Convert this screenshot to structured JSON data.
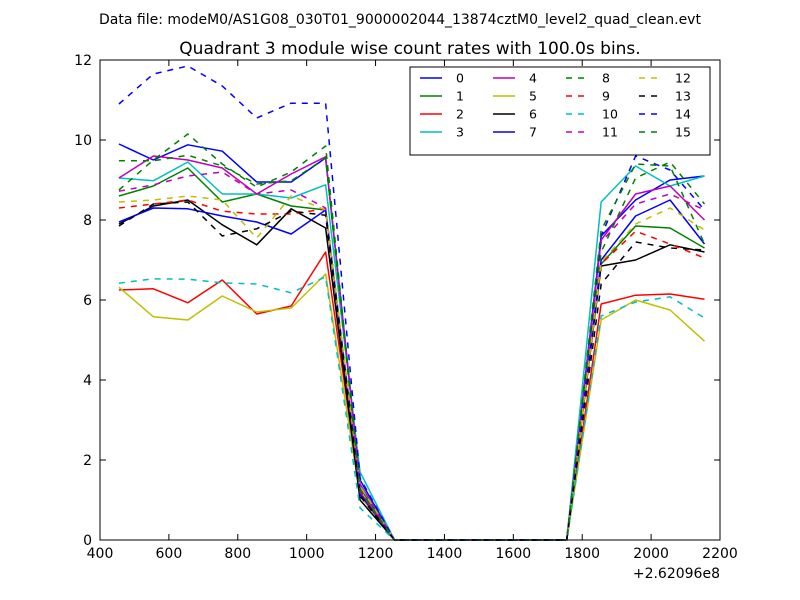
{
  "figure": {
    "suptitle": "Data file: modeM0/AS1G08_030T01_9000002044_13874cztM0_level2_quad_clean.evt"
  },
  "chart_data": {
    "type": "line",
    "title": "Quadrant 3 module wise count rates with 100.0s bins.",
    "xlabel": "",
    "ylabel": "",
    "x_offset_label": "+2.62096e8",
    "xlim": [
      400,
      2200
    ],
    "ylim": [
      0,
      12
    ],
    "x_ticks": [
      400,
      600,
      800,
      1000,
      1200,
      1400,
      1600,
      1800,
      2000,
      2200
    ],
    "y_ticks": [
      0,
      2,
      4,
      6,
      8,
      10,
      12
    ],
    "x_tick_labels": [
      "400",
      "600",
      "800",
      "1000",
      "1200",
      "1400",
      "1600",
      "1800",
      "2000",
      "2200"
    ],
    "y_tick_labels": [
      "0",
      "2",
      "4",
      "6",
      "8",
      "10",
      "12"
    ],
    "grid": false,
    "legend_position": "top-right",
    "legend_columns": 4,
    "x": [
      455,
      555,
      655,
      755,
      855,
      955,
      1055,
      1155,
      1255,
      1355,
      1455,
      1555,
      1655,
      1755,
      1855,
      1955,
      2055,
      2155
    ],
    "series": [
      {
        "name": "0",
        "color": "#0000ff",
        "dash": "solid",
        "values": [
          9.9,
          9.5,
          9.88,
          9.72,
          8.95,
          8.95,
          9.55,
          1.5,
          0,
          0,
          0,
          0,
          0,
          0,
          7.6,
          8.5,
          9.0,
          9.1
        ]
      },
      {
        "name": "1",
        "color": "#008000",
        "dash": "solid",
        "values": [
          8.6,
          8.85,
          9.3,
          8.45,
          8.65,
          8.35,
          8.25,
          1.3,
          0,
          0,
          0,
          0,
          0,
          0,
          6.9,
          7.85,
          7.8,
          7.3
        ]
      },
      {
        "name": "2",
        "color": "#ff0000",
        "dash": "solid",
        "values": [
          6.25,
          6.28,
          5.93,
          6.5,
          5.65,
          5.85,
          7.2,
          1.2,
          0,
          0,
          0,
          0,
          0,
          0,
          5.9,
          6.12,
          6.15,
          6.02
        ]
      },
      {
        "name": "3",
        "color": "#00bfbf",
        "dash": "solid",
        "values": [
          9.05,
          8.98,
          9.45,
          8.65,
          8.65,
          8.55,
          8.88,
          1.7,
          0,
          0,
          0,
          0,
          0,
          0,
          8.45,
          9.35,
          8.85,
          9.1
        ]
      },
      {
        "name": "4",
        "color": "#bf00bf",
        "dash": "solid",
        "values": [
          9.05,
          9.6,
          9.5,
          9.3,
          8.65,
          9.15,
          9.58,
          1.4,
          0,
          0,
          0,
          0,
          0,
          0,
          7.5,
          8.65,
          8.85,
          8.0
        ]
      },
      {
        "name": "5",
        "color": "#bfbf00",
        "dash": "solid",
        "values": [
          6.32,
          5.58,
          5.5,
          6.1,
          5.7,
          5.8,
          6.65,
          1.1,
          0,
          0,
          0,
          0,
          0,
          0,
          5.5,
          6.0,
          5.75,
          4.97
        ]
      },
      {
        "name": "6",
        "color": "#000000",
        "dash": "solid",
        "values": [
          7.9,
          8.35,
          8.5,
          7.88,
          7.38,
          8.28,
          7.8,
          1.0,
          0,
          0,
          0,
          0,
          0,
          0,
          6.85,
          7.0,
          7.38,
          7.2
        ]
      },
      {
        "name": "7",
        "color": "#0000ff",
        "dash": "solid",
        "values": [
          7.95,
          8.3,
          8.28,
          8.1,
          7.95,
          7.65,
          8.25,
          1.15,
          0,
          0,
          0,
          0,
          0,
          0,
          7.0,
          8.1,
          8.5,
          7.4
        ]
      },
      {
        "name": "8",
        "color": "#008000",
        "dash": "dashed",
        "values": [
          8.75,
          9.5,
          10.15,
          9.4,
          8.82,
          9.2,
          9.85,
          1.3,
          0,
          0,
          0,
          0,
          0,
          0,
          7.2,
          9.05,
          9.45,
          8.4
        ]
      },
      {
        "name": "9",
        "color": "#ff0000",
        "dash": "dashed",
        "values": [
          8.3,
          8.4,
          8.5,
          8.22,
          8.15,
          8.15,
          8.28,
          1.25,
          0,
          0,
          0,
          0,
          0,
          0,
          6.9,
          7.72,
          7.4,
          7.05
        ]
      },
      {
        "name": "10",
        "color": "#00bfbf",
        "dash": "dashed",
        "values": [
          6.42,
          6.53,
          6.52,
          6.43,
          6.4,
          6.18,
          6.58,
          0.8,
          0,
          0,
          0,
          0,
          0,
          0,
          5.6,
          5.95,
          6.08,
          5.55
        ]
      },
      {
        "name": "11",
        "color": "#bf00bf",
        "dash": "dashed",
        "values": [
          8.72,
          8.88,
          9.1,
          9.2,
          8.65,
          8.75,
          8.3,
          1.2,
          0,
          0,
          0,
          0,
          0,
          0,
          7.45,
          8.4,
          8.65,
          8.25
        ]
      },
      {
        "name": "12",
        "color": "#bfbf00",
        "dash": "dashed",
        "values": [
          8.45,
          8.5,
          8.6,
          8.5,
          7.55,
          8.6,
          8.25,
          1.35,
          0,
          0,
          0,
          0,
          0,
          0,
          6.95,
          7.9,
          8.3,
          7.75
        ]
      },
      {
        "name": "13",
        "color": "#000000",
        "dash": "dashed",
        "values": [
          7.85,
          8.4,
          8.45,
          7.6,
          7.78,
          8.22,
          8.12,
          1.1,
          0,
          0,
          0,
          0,
          0,
          0,
          6.4,
          7.45,
          7.3,
          7.25
        ]
      },
      {
        "name": "14",
        "color": "#0000ff",
        "dash": "dashed",
        "values": [
          10.9,
          11.65,
          11.85,
          11.35,
          10.55,
          10.92,
          10.92,
          1.55,
          0,
          0,
          0,
          0,
          0,
          0,
          7.6,
          9.6,
          9.25,
          8.25
        ]
      },
      {
        "name": "15",
        "color": "#008000",
        "dash": "dashed",
        "values": [
          9.48,
          9.48,
          9.62,
          9.35,
          8.9,
          8.98,
          9.55,
          1.25,
          0,
          0,
          0,
          0,
          0,
          0,
          7.75,
          9.4,
          9.35,
          7.4
        ]
      }
    ]
  }
}
